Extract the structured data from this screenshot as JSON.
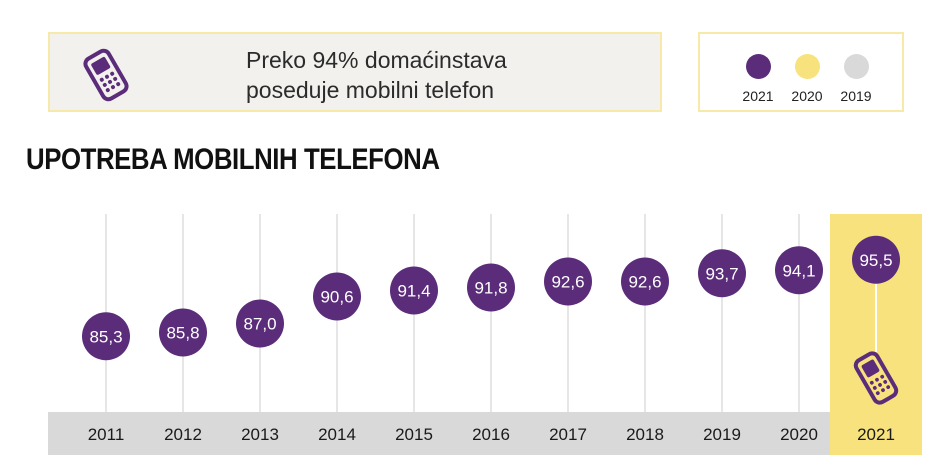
{
  "banner": {
    "line1": "Preko 94% domaćinstava",
    "line2": "poseduje mobilni telefon",
    "icon": "mobile-phone-icon"
  },
  "legend": {
    "items": [
      {
        "label": "2021",
        "color": "#5b2c7a"
      },
      {
        "label": "2020",
        "color": "#f7e27d"
      },
      {
        "label": "2019",
        "color": "#d9d9d9"
      }
    ]
  },
  "colors": {
    "dot": "#5b2c7a",
    "highlight": "#f7e27d",
    "axis_band": "#d9d9d9",
    "gridline": "#e6e6e6"
  },
  "chart_data": {
    "type": "scatter",
    "title": "UPOTREBA MOBILNIH TELEFONA",
    "categories": [
      "2011",
      "2012",
      "2013",
      "2014",
      "2015",
      "2016",
      "2017",
      "2018",
      "2019",
      "2020",
      "2021"
    ],
    "values": [
      85.3,
      85.8,
      87.0,
      90.6,
      91.4,
      91.8,
      92.6,
      92.6,
      93.7,
      94.1,
      95.5
    ],
    "labels": [
      "85,3",
      "85,8",
      "87,0",
      "90,6",
      "91,4",
      "91,8",
      "92,6",
      "92,6",
      "93,7",
      "94,1",
      "95,5"
    ],
    "highlight": "2021",
    "highlight_icon": "mobile-phone-icon",
    "xlabel": "",
    "ylabel": "",
    "ylim": [
      84,
      96
    ]
  }
}
